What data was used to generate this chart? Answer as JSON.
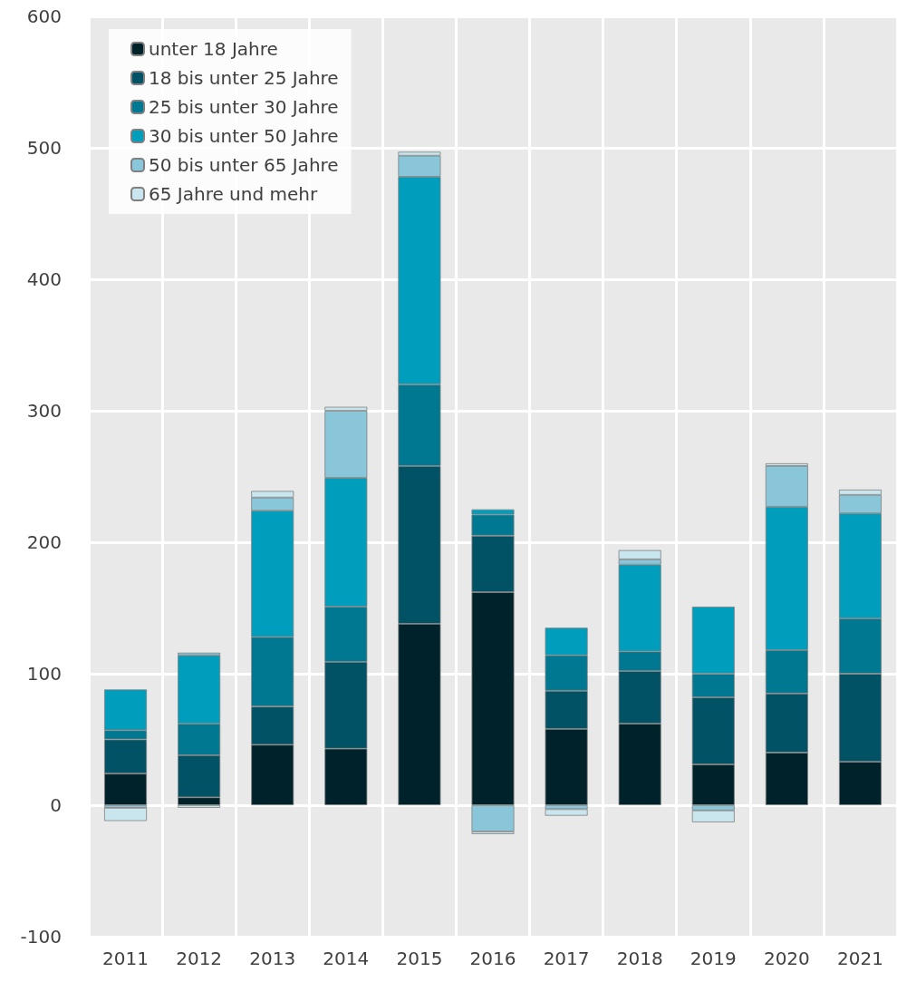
{
  "chart_data": {
    "type": "bar",
    "stacked": true,
    "categories": [
      "2011",
      "2012",
      "2013",
      "2014",
      "2015",
      "2016",
      "2017",
      "2018",
      "2019",
      "2020",
      "2021"
    ],
    "series": [
      {
        "name": "unter 18 Jahre",
        "color": "#00232b",
        "values": [
          24,
          6,
          46,
          43,
          138,
          162,
          58,
          62,
          31,
          40,
          33
        ]
      },
      {
        "name": "18 bis unter 25 Jahre",
        "color": "#005264",
        "values": [
          26,
          32,
          29,
          66,
          120,
          43,
          29,
          40,
          51,
          45,
          67
        ]
      },
      {
        "name": "25 bis unter 30 Jahre",
        "color": "#007891",
        "values": [
          7,
          24,
          53,
          42,
          62,
          16,
          27,
          15,
          18,
          33,
          42
        ]
      },
      {
        "name": "30 bis unter 50 Jahre",
        "color": "#009ebd",
        "values": [
          31,
          52,
          96,
          98,
          158,
          4,
          21,
          66,
          51,
          109,
          80
        ]
      },
      {
        "name": "50 bis unter 65 Jahre",
        "color": "#89c6d9",
        "values": [
          -2,
          2,
          10,
          51,
          16,
          -20,
          -3,
          4,
          -4,
          31,
          14
        ]
      },
      {
        "name": "65 Jahre und mehr",
        "color": "#c9e5ee",
        "values": [
          -10,
          -2,
          5,
          3,
          3,
          -2,
          -5,
          7,
          -9,
          2,
          4
        ]
      }
    ],
    "ylim": [
      -100,
      600
    ],
    "yticks": [
      -100,
      0,
      100,
      200,
      300,
      400,
      500,
      600
    ],
    "grid": true,
    "legend": "top left"
  }
}
